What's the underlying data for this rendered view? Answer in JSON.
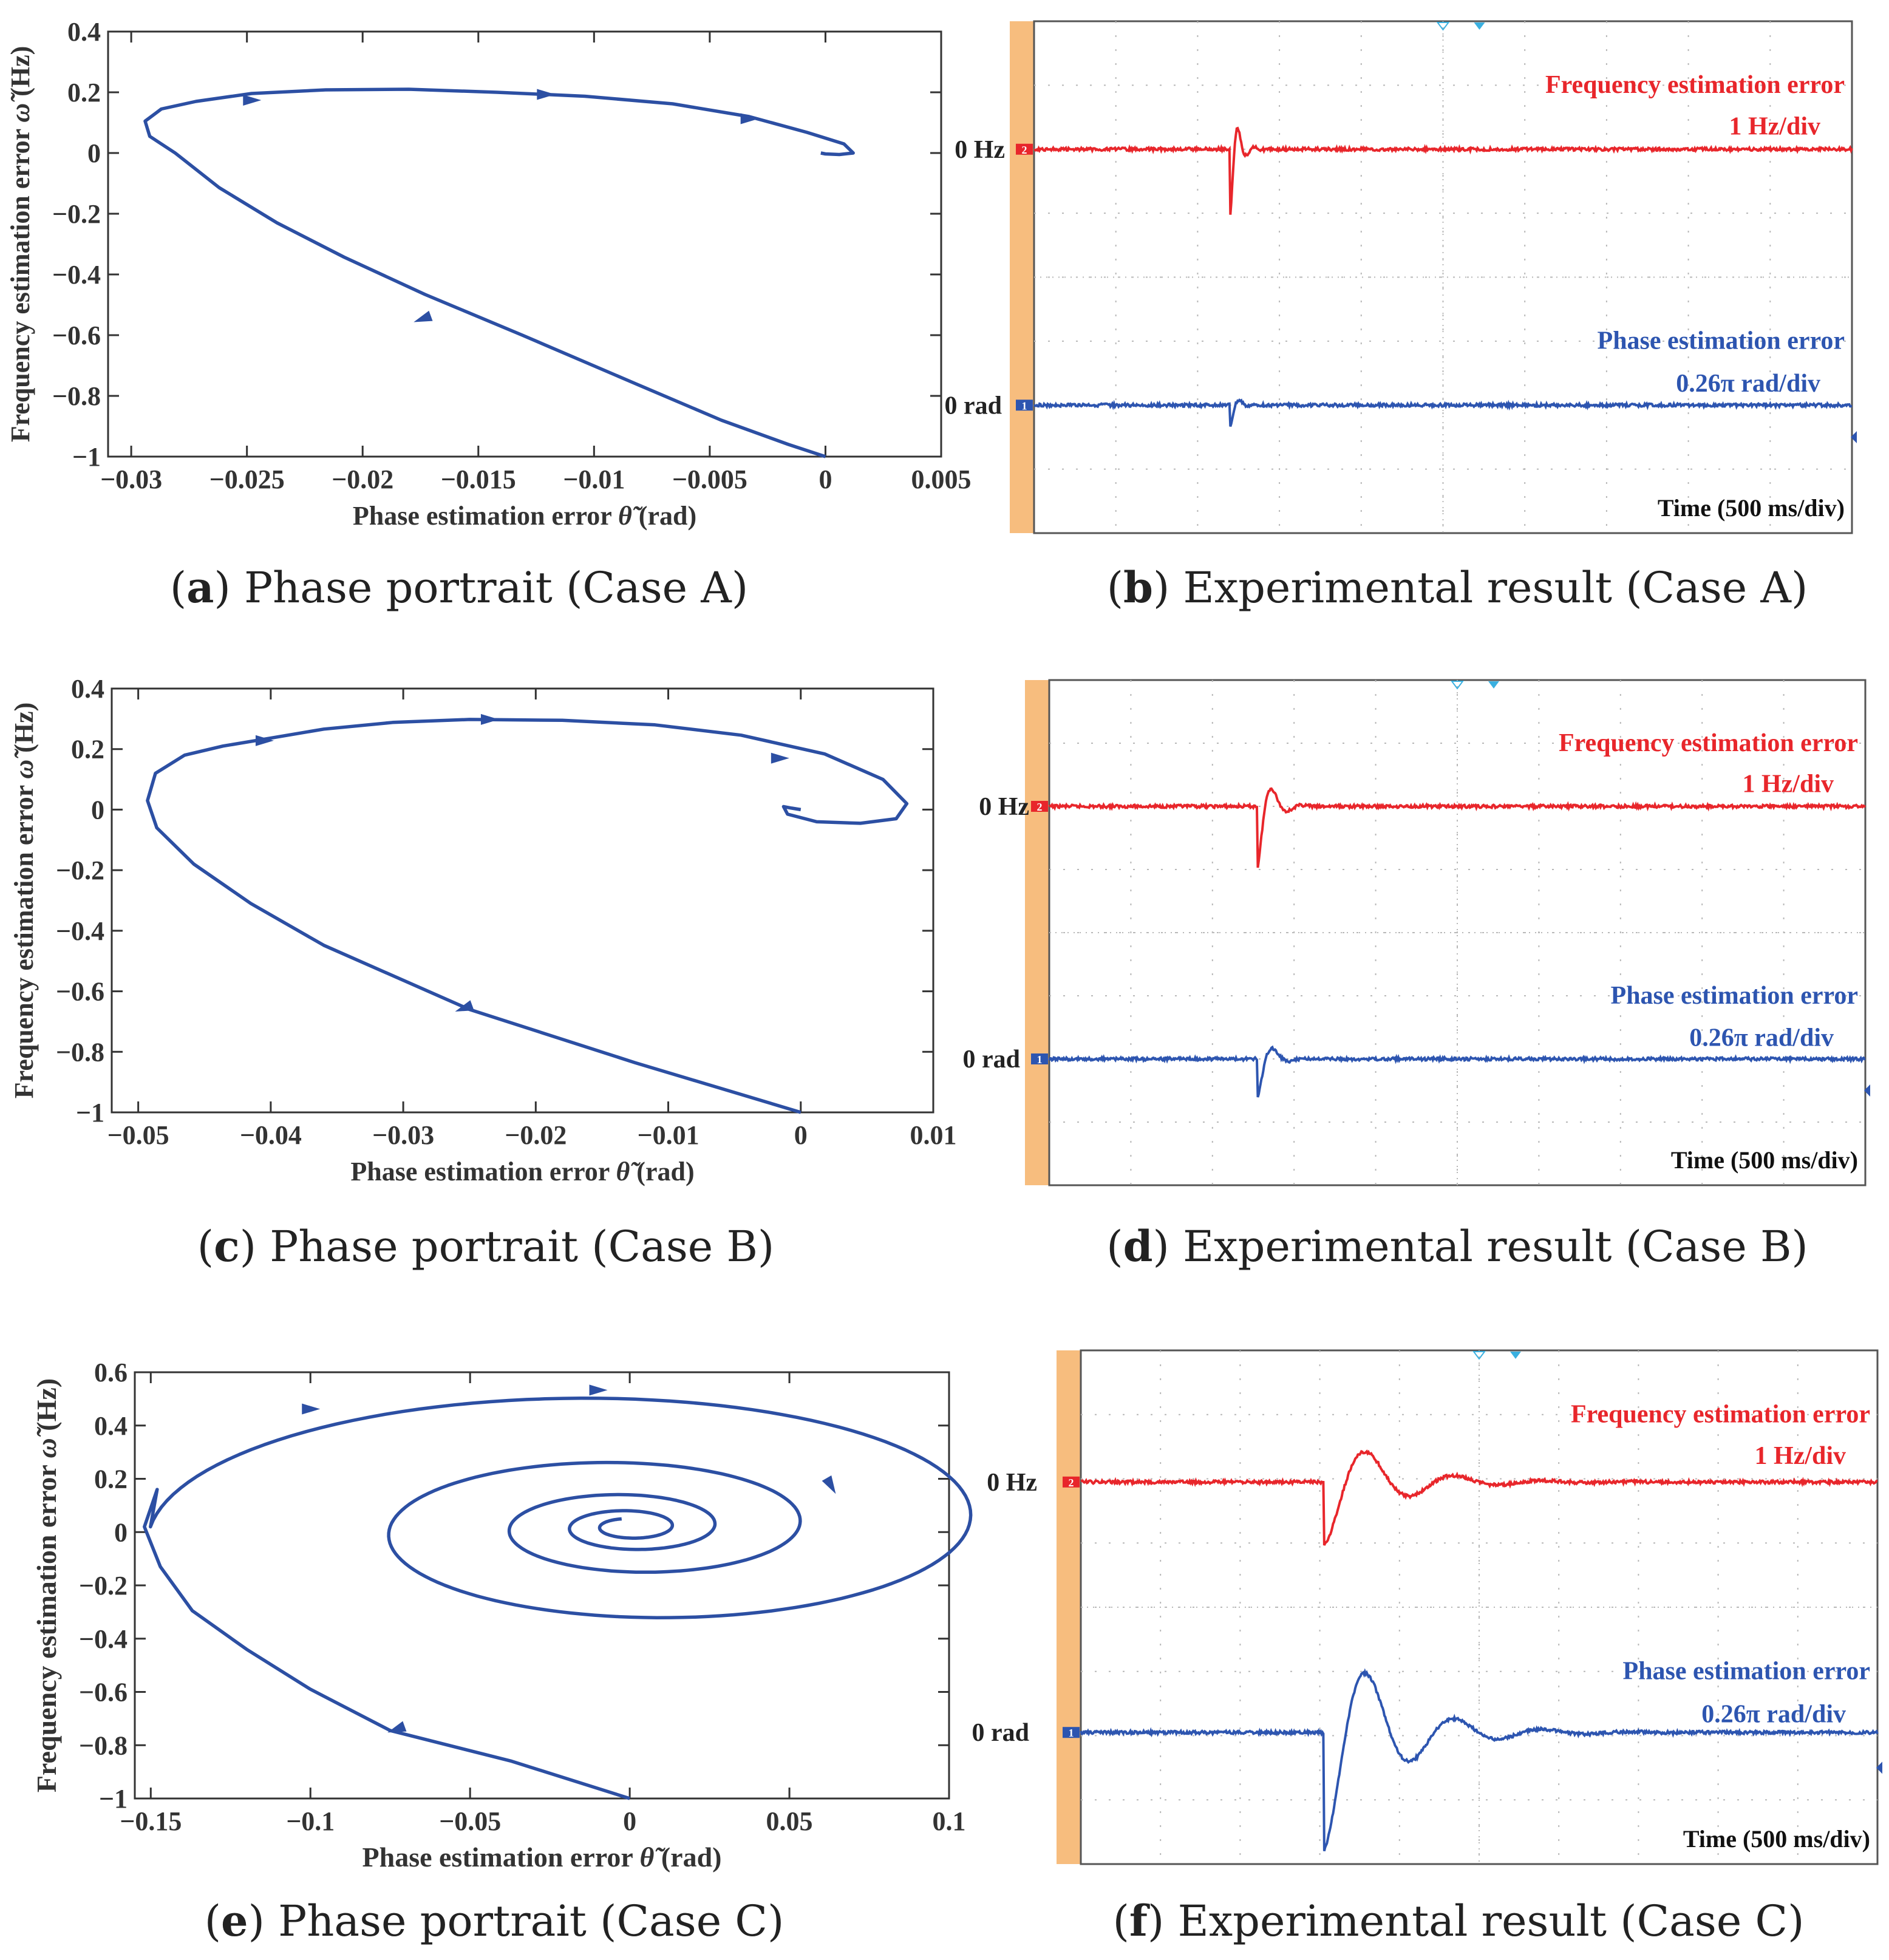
{
  "colors": {
    "curve": "#2c4fa3",
    "axis": "#333333",
    "scope_red": "#e8262b",
    "scope_blue": "#2d55b0",
    "scope_orange": "#f7bd7e",
    "scope_grid": "#b8b8b8",
    "marker_cyan": "#3ab0e0"
  },
  "panels": [
    {
      "caption_letter": "a",
      "caption_text": " Phase portrait (Case A)",
      "chart_data": {
        "type": "line",
        "xlabel_prefix": "Phase estimation error ",
        "xlabel_symbol": "θ̃",
        "xlabel_suffix": " (rad)",
        "ylabel_prefix": "Frequency estimation error ",
        "ylabel_symbol": "ω̃",
        "ylabel_suffix": " (Hz)",
        "xlim": [
          -0.031,
          0.005
        ],
        "ylim": [
          -1,
          0.4
        ],
        "xticks": [
          -0.03,
          -0.025,
          -0.02,
          -0.015,
          -0.01,
          -0.005,
          0,
          0.005
        ],
        "xtick_labels": [
          "−0.03",
          "−0.025",
          "−0.02",
          "−0.015",
          "−0.01",
          "−0.005",
          "0",
          "0.005"
        ],
        "yticks": [
          -1,
          -0.8,
          -0.6,
          -0.4,
          -0.2,
          0,
          0.2,
          0.4
        ],
        "ytick_labels": [
          "−1",
          "−0.8",
          "−0.6",
          "−0.4",
          "−0.2",
          "0",
          "0.2",
          "0.4"
        ],
        "series": [
          {
            "name": "trajectory",
            "x": [
              0,
              -0.0016,
              -0.0045,
              -0.0082,
              -0.0131,
              -0.0173,
              -0.0208,
              -0.0237,
              -0.0262,
              -0.0281,
              -0.0292,
              -0.0294,
              -0.0287,
              -0.0272,
              -0.0248,
              -0.0216,
              -0.018,
              -0.0142,
              -0.0104,
              -0.0066,
              -0.0033,
              -0.0008,
              0.0008,
              0.0012,
              0.0006,
              0,
              -0.0002
            ],
            "y": [
              -1,
              -0.96,
              -0.88,
              -0.76,
              -0.6,
              -0.466,
              -0.343,
              -0.23,
              -0.114,
              0,
              0.055,
              0.105,
              0.145,
              0.17,
              0.196,
              0.208,
              0.21,
              0.2,
              0.187,
              0.162,
              0.12,
              0.068,
              0.03,
              0,
              -0.005,
              -0.003,
              0
            ]
          }
        ],
        "arrows": [
          {
            "x": -0.0174,
            "y": -0.546,
            "dir": "up-left"
          },
          {
            "x": -0.0248,
            "y": 0.174,
            "dir": "right"
          },
          {
            "x": -0.0121,
            "y": 0.193,
            "dir": "right"
          },
          {
            "x": -0.0033,
            "y": 0.113,
            "dir": "right"
          }
        ]
      }
    },
    {
      "caption_letter": "b",
      "caption_text": " Experimental result (Case A)",
      "scope": {
        "freq_title": "Frequency estimation error",
        "freq_scale": "1 Hz/div",
        "phase_title": "Phase estimation error",
        "phase_scale": "0.26π  rad/div",
        "zero_hz": "0 Hz",
        "zero_rad": "0 rad",
        "time_label": "Time (500 ms/div)",
        "channel_red": "2",
        "channel_blue": "1",
        "freq_response": {
          "step_time_div": 2.4,
          "amplitude_div": -1.0,
          "decay_per_div": 12,
          "cycles_per_div": 5
        },
        "phase_response": {
          "step_time_div": 2.4,
          "amplitude_div": -0.35,
          "decay_per_div": 14,
          "cycles_per_div": 4
        }
      }
    },
    {
      "caption_letter": "c",
      "caption_text": " Phase portrait (Case B)",
      "chart_data": {
        "type": "line",
        "xlabel_prefix": "Phase estimation error ",
        "xlabel_symbol": "θ̃",
        "xlabel_suffix": " (rad)",
        "ylabel_prefix": "Frequency estimation error ",
        "ylabel_symbol": "ω̃",
        "ylabel_suffix": " (Hz)",
        "xlim": [
          -0.052,
          0.01
        ],
        "ylim": [
          -1,
          0.4
        ],
        "xticks": [
          -0.05,
          -0.04,
          -0.03,
          -0.02,
          -0.01,
          0,
          0.01
        ],
        "xtick_labels": [
          "−0.05",
          "−0.04",
          "−0.03",
          "−0.02",
          "−0.01",
          "0",
          "0.01"
        ],
        "yticks": [
          -1,
          -0.8,
          -0.6,
          -0.4,
          -0.2,
          0,
          0.2,
          0.4
        ],
        "ytick_labels": [
          "−1",
          "−0.8",
          "−0.6",
          "−0.4",
          "−0.2",
          "0",
          "0.2",
          "0.4"
        ],
        "series": [
          {
            "name": "trajectory",
            "x": [
              0,
              -0.0125,
              -0.025,
              -0.036,
              -0.0415,
              -0.0458,
              -0.0486,
              -0.0493,
              -0.0487,
              -0.0465,
              -0.0436,
              -0.0402,
              -0.036,
              -0.0308,
              -0.025,
              -0.018,
              -0.011,
              -0.0045,
              0.0018,
              0.0062,
              0.008,
              0.0072,
              0.0045,
              0.0012,
              -0.001,
              -0.0013,
              -0.0007,
              0
            ],
            "y": [
              -1,
              -0.836,
              -0.66,
              -0.448,
              -0.31,
              -0.18,
              -0.06,
              0.03,
              0.12,
              0.18,
              0.21,
              0.235,
              0.266,
              0.288,
              0.298,
              0.295,
              0.28,
              0.246,
              0.184,
              0.1,
              0.02,
              -0.03,
              -0.045,
              -0.04,
              -0.015,
              0.01,
              0.005,
              0
            ]
          }
        ],
        "arrows": [
          {
            "x": -0.0254,
            "y": -0.656,
            "dir": "up-left"
          },
          {
            "x": -0.0405,
            "y": 0.228,
            "dir": "right"
          },
          {
            "x": -0.0235,
            "y": 0.298,
            "dir": "right"
          },
          {
            "x": -0.0016,
            "y": 0.17,
            "dir": "right"
          }
        ]
      }
    },
    {
      "caption_letter": "d",
      "caption_text": " Experimental result (Case B)",
      "scope": {
        "freq_title": "Frequency estimation error",
        "freq_scale": "1 Hz/div",
        "phase_title": "Phase estimation error",
        "phase_scale": "0.26π  rad/div",
        "zero_hz": "0 Hz",
        "zero_rad": "0 rad",
        "time_label": "Time (500 ms/div)",
        "channel_red": "2",
        "channel_blue": "1",
        "freq_response": {
          "step_time_div": 2.55,
          "amplitude_div": -1.0,
          "decay_per_div": 7,
          "cycles_per_div": 2.6
        },
        "phase_response": {
          "step_time_div": 2.55,
          "amplitude_div": -0.65,
          "decay_per_div": 7,
          "cycles_per_div": 2.4
        }
      }
    },
    {
      "caption_letter": "e",
      "caption_text": " Phase portrait (Case C)",
      "chart_data": {
        "type": "line",
        "xlabel_prefix": "Phase estimation error ",
        "xlabel_symbol": "θ̃",
        "xlabel_suffix": " (rad)",
        "ylabel_prefix": "Frequency estimation error ",
        "ylabel_symbol": "ω̃",
        "ylabel_suffix": " (Hz)",
        "xlim": [
          -0.155,
          0.1
        ],
        "ylim": [
          -1,
          0.6
        ],
        "xticks": [
          -0.15,
          -0.1,
          -0.05,
          0,
          0.05,
          0.1
        ],
        "xtick_labels": [
          "−0.15",
          "−0.1",
          "−0.05",
          "0",
          "0.05",
          "0.1"
        ],
        "yticks": [
          -1,
          -0.8,
          -0.6,
          -0.4,
          -0.2,
          0,
          0.2,
          0.4,
          0.6
        ],
        "ytick_labels": [
          "−1",
          "−0.8",
          "−0.6",
          "−0.4",
          "−0.2",
          "0",
          "0.2",
          "0.4",
          "0.6"
        ],
        "spiral": {
          "start": {
            "x": 0,
            "y": -1
          },
          "lower_path": {
            "x": [
              0,
              -0.037,
              -0.075,
              -0.1,
              -0.12,
              -0.137,
              -0.147,
              -0.152,
              -0.148
            ],
            "y": [
              -1,
              -0.86,
              -0.745,
              -0.59,
              -0.44,
              -0.295,
              -0.13,
              0.02,
              0.16
            ]
          },
          "center": {
            "x": 0,
            "y": 0.02
          },
          "r0": 0.1501,
          "decay_per_turn": 0.5,
          "aspect": 3.8,
          "turns": 4.2
        },
        "arrows": [
          {
            "x": -0.073,
            "y": -0.74,
            "dir": "up-left"
          },
          {
            "x": -0.1,
            "y": 0.462,
            "dir": "right"
          },
          {
            "x": -0.01,
            "y": 0.533,
            "dir": "right"
          },
          {
            "x": 0.063,
            "y": 0.175,
            "dir": "down"
          }
        ]
      }
    },
    {
      "caption_letter": "f",
      "caption_text": " Experimental result (Case C)",
      "scope": {
        "freq_title": "Frequency estimation error",
        "freq_scale": "1 Hz/div",
        "phase_title": "Phase estimation error",
        "phase_scale": "0.26π  rad/div",
        "zero_hz": "0 Hz",
        "zero_rad": "0 rad",
        "time_label": "Time (500 ms/div)",
        "channel_red": "2",
        "channel_blue": "1",
        "freq_response": {
          "step_time_div": 3.05,
          "amplitude_div": -1.0,
          "decay_per_div": 1.4,
          "cycles_per_div": 0.9
        },
        "phase_response": {
          "step_time_div": 3.05,
          "amplitude_div": -1.85,
          "decay_per_div": 1.3,
          "cycles_per_div": 0.9
        }
      }
    }
  ]
}
